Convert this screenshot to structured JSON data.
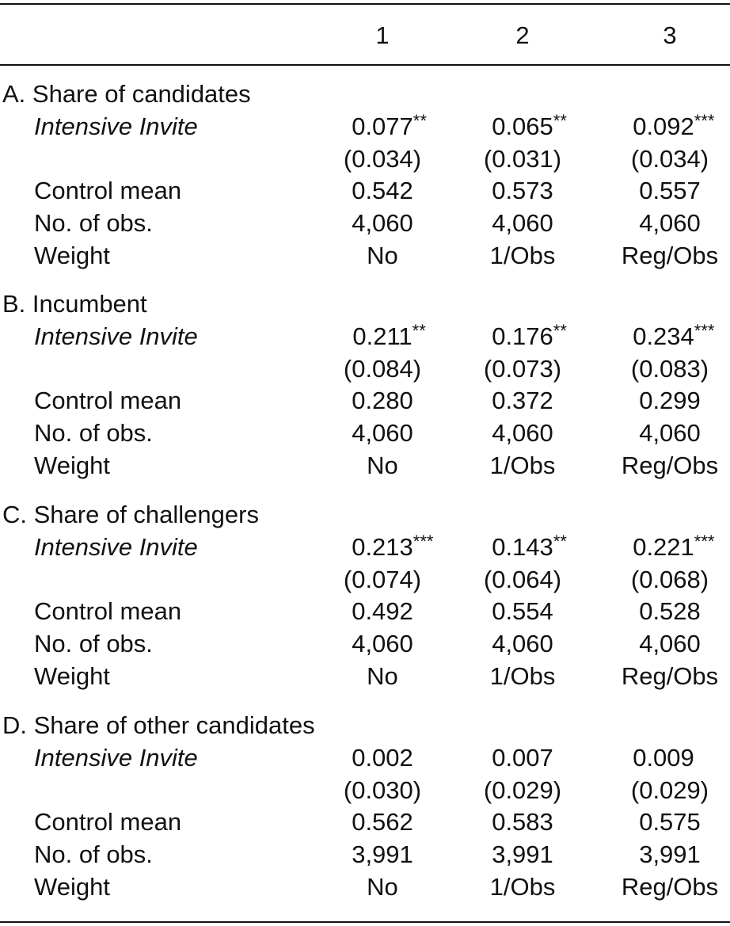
{
  "table": {
    "columns": [
      "1",
      "2",
      "3"
    ],
    "panels": [
      {
        "title": "A. Share of candidates",
        "rows": {
          "coef_label": "Intensive Invite",
          "coef": [
            {
              "v": "0.077",
              "s": "**"
            },
            {
              "v": "0.065",
              "s": "**"
            },
            {
              "v": "0.092",
              "s": "***"
            }
          ],
          "se": [
            "(0.034)",
            "(0.031)",
            "(0.034)"
          ],
          "mean_label": "Control mean",
          "mean": [
            "0.542",
            "0.573",
            "0.557"
          ],
          "obs_label": "No. of obs.",
          "obs": [
            "4,060",
            "4,060",
            "4,060"
          ],
          "weight_label": "Weight",
          "weight": [
            "No",
            "1/Obs",
            "Reg/Obs"
          ]
        }
      },
      {
        "title": "B. Incumbent",
        "rows": {
          "coef_label": "Intensive Invite",
          "coef": [
            {
              "v": "0.211",
              "s": "**"
            },
            {
              "v": "0.176",
              "s": "**"
            },
            {
              "v": "0.234",
              "s": "***"
            }
          ],
          "se": [
            "(0.084)",
            "(0.073)",
            "(0.083)"
          ],
          "mean_label": "Control mean",
          "mean": [
            "0.280",
            "0.372",
            "0.299"
          ],
          "obs_label": "No. of obs.",
          "obs": [
            "4,060",
            "4,060",
            "4,060"
          ],
          "weight_label": "Weight",
          "weight": [
            "No",
            "1/Obs",
            "Reg/Obs"
          ]
        }
      },
      {
        "title": "C. Share of challengers",
        "rows": {
          "coef_label": "Intensive Invite",
          "coef": [
            {
              "v": "0.213",
              "s": "***"
            },
            {
              "v": "0.143",
              "s": "**"
            },
            {
              "v": "0.221",
              "s": "***"
            }
          ],
          "se": [
            "(0.074)",
            "(0.064)",
            "(0.068)"
          ],
          "mean_label": "Control mean",
          "mean": [
            "0.492",
            "0.554",
            "0.528"
          ],
          "obs_label": "No. of obs.",
          "obs": [
            "4,060",
            "4,060",
            "4,060"
          ],
          "weight_label": "Weight",
          "weight": [
            "No",
            "1/Obs",
            "Reg/Obs"
          ]
        }
      },
      {
        "title": "D. Share of other candidates",
        "rows": {
          "coef_label": "Intensive Invite",
          "coef": [
            {
              "v": "0.002",
              "s": ""
            },
            {
              "v": "0.007",
              "s": ""
            },
            {
              "v": "0.009",
              "s": ""
            }
          ],
          "se": [
            "(0.030)",
            "(0.029)",
            "(0.029)"
          ],
          "mean_label": "Control mean",
          "mean": [
            "0.562",
            "0.583",
            "0.575"
          ],
          "obs_label": "No. of obs.",
          "obs": [
            "3,991",
            "3,991",
            "3,991"
          ],
          "weight_label": "Weight",
          "weight": [
            "No",
            "1/Obs",
            "Reg/Obs"
          ]
        }
      }
    ]
  }
}
